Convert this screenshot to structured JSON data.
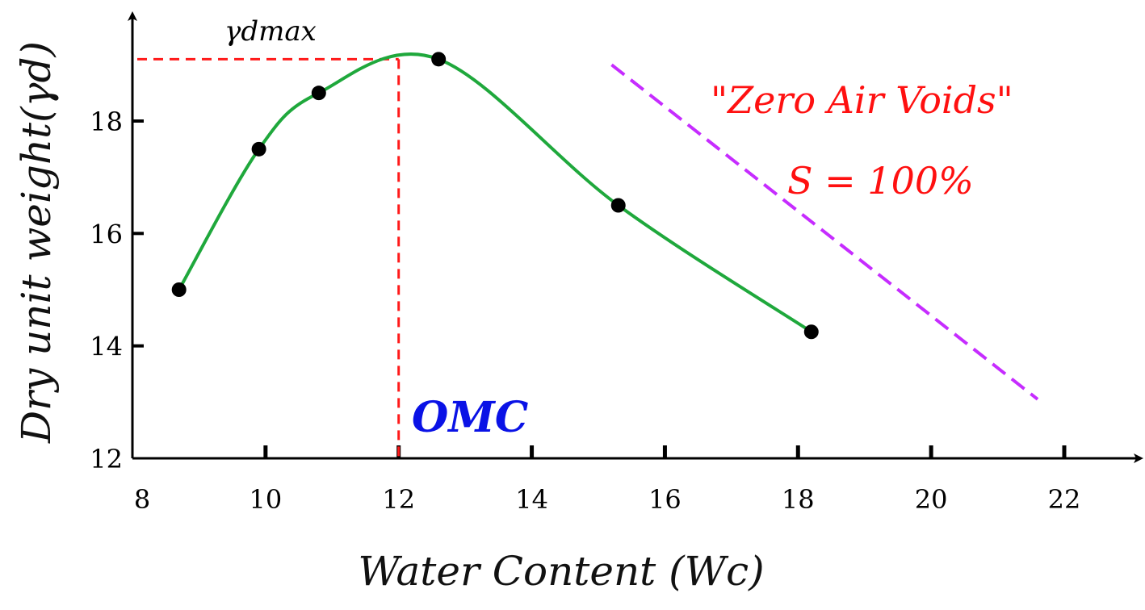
{
  "chart_data": {
    "type": "line",
    "x_axis": {
      "title": "Water Content (Wc)",
      "range": [
        8,
        22
      ],
      "ticks": [
        8,
        10,
        12,
        14,
        16,
        18,
        20,
        22
      ]
    },
    "y_axis": {
      "title": "Dry unit weight(γd)",
      "range": [
        12,
        19.8
      ],
      "ticks": [
        12,
        14,
        16,
        18
      ]
    },
    "grid": false,
    "series": [
      {
        "kind": "compaction-curve",
        "color": "#1fa83c",
        "points": [
          {
            "x": 8.7,
            "y": 15.0
          },
          {
            "x": 9.9,
            "y": 17.5
          },
          {
            "x": 10.8,
            "y": 18.5
          },
          {
            "x": 12.6,
            "y": 19.1
          },
          {
            "x": 15.3,
            "y": 16.5
          },
          {
            "x": 18.2,
            "y": 14.25
          }
        ]
      },
      {
        "kind": "zero-air-voids-line",
        "color": "#c62cff",
        "dashed": true,
        "points": [
          {
            "x": 15.2,
            "y": 19.0
          },
          {
            "x": 21.6,
            "y": 13.05
          }
        ]
      }
    ],
    "reference_lines": {
      "color": "#ff1a1a",
      "omc_x": 12.0,
      "gamma_dmax_y": 19.1
    },
    "annotations": {
      "gamma_dmax_label": "γdmax",
      "omc_label": "OMC",
      "zav_line1": "\"Zero Air Voids\"",
      "zav_line2": "S = 100%"
    }
  }
}
